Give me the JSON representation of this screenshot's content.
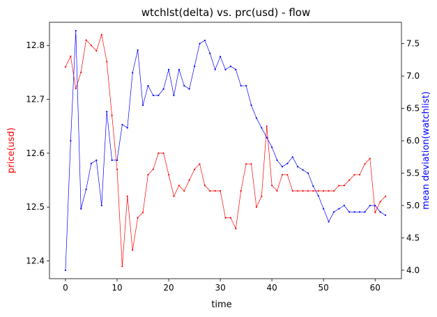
{
  "chart_data": {
    "type": "line",
    "title": "wtchlst(delta) vs. prc(usd) - flow",
    "xlabel": "time",
    "ylabel_left": "price(usd)",
    "ylabel_right": "mean deviation(watchlist)",
    "xlim": [
      -3.1,
      65.1
    ],
    "ylim_left": [
      12.367,
      12.843
    ],
    "ylim_right": [
      3.87,
      7.83
    ],
    "x_ticks": [
      0,
      10,
      20,
      30,
      40,
      50,
      60
    ],
    "y_ticks_left": [
      12.4,
      12.5,
      12.6,
      12.7,
      12.8
    ],
    "y_ticks_right": [
      4.0,
      4.5,
      5.0,
      5.5,
      6.0,
      6.5,
      7.0,
      7.5
    ],
    "grid": false,
    "legend": "none",
    "colors": {
      "price": "#ff0000",
      "watchlist": "#0000ff",
      "axis": "#000000"
    },
    "series": [
      {
        "axis": "left",
        "x": [
          0,
          1,
          2,
          3,
          4,
          5,
          6,
          7,
          8,
          9,
          10,
          11,
          12,
          13,
          14,
          15,
          16,
          17,
          18,
          19,
          20,
          21,
          22,
          23,
          24,
          25,
          26,
          27,
          28,
          29,
          30,
          31,
          32,
          33,
          34,
          35,
          36,
          37,
          38,
          39,
          40,
          41,
          42,
          43,
          44,
          45,
          46,
          47,
          48,
          49,
          50,
          51,
          52,
          53,
          54,
          55,
          56,
          57,
          58,
          59,
          60,
          61,
          62
        ],
        "values": [
          12.76,
          12.78,
          12.72,
          12.75,
          12.81,
          12.8,
          12.79,
          12.82,
          12.77,
          12.67,
          12.57,
          12.39,
          12.52,
          12.42,
          12.48,
          12.49,
          12.56,
          12.57,
          12.6,
          12.6,
          12.56,
          12.52,
          12.54,
          12.53,
          12.55,
          12.57,
          12.58,
          12.54,
          12.53,
          12.53,
          12.53,
          12.48,
          12.48,
          12.46,
          12.53,
          12.58,
          12.58,
          12.5,
          12.52,
          12.65,
          12.54,
          12.53,
          12.56,
          12.56,
          12.53,
          12.53,
          12.53,
          12.53,
          12.53,
          12.53,
          12.53,
          12.53,
          12.53,
          12.54,
          12.54,
          12.55,
          12.56,
          12.56,
          12.58,
          12.59,
          12.49,
          12.51,
          12.52
        ]
      },
      {
        "axis": "right",
        "x": [
          0,
          1,
          2,
          3,
          4,
          5,
          6,
          7,
          8,
          9,
          10,
          11,
          12,
          13,
          14,
          15,
          16,
          17,
          18,
          19,
          20,
          21,
          22,
          23,
          24,
          25,
          26,
          27,
          28,
          29,
          30,
          31,
          32,
          33,
          34,
          35,
          36,
          37,
          38,
          39,
          40,
          41,
          42,
          43,
          44,
          45,
          46,
          47,
          48,
          49,
          50,
          51,
          52,
          53,
          54,
          55,
          56,
          57,
          58,
          59,
          60,
          61,
          62
        ],
        "values": [
          4.0,
          6.0,
          7.7,
          4.95,
          5.25,
          5.65,
          5.7,
          5.0,
          6.45,
          5.7,
          5.7,
          6.25,
          6.2,
          7.05,
          7.4,
          6.55,
          6.85,
          6.7,
          6.7,
          6.8,
          7.1,
          6.7,
          7.1,
          6.85,
          6.8,
          7.15,
          7.5,
          7.55,
          7.35,
          7.1,
          7.3,
          7.1,
          7.15,
          7.1,
          6.85,
          6.85,
          6.55,
          6.35,
          6.2,
          6.05,
          5.9,
          5.7,
          5.6,
          5.65,
          5.75,
          5.6,
          5.55,
          5.5,
          5.3,
          5.15,
          4.95,
          4.75,
          4.9,
          4.95,
          5.0,
          4.9,
          4.9,
          4.9,
          4.9,
          5.0,
          5.0,
          4.9,
          4.85
        ]
      }
    ]
  }
}
